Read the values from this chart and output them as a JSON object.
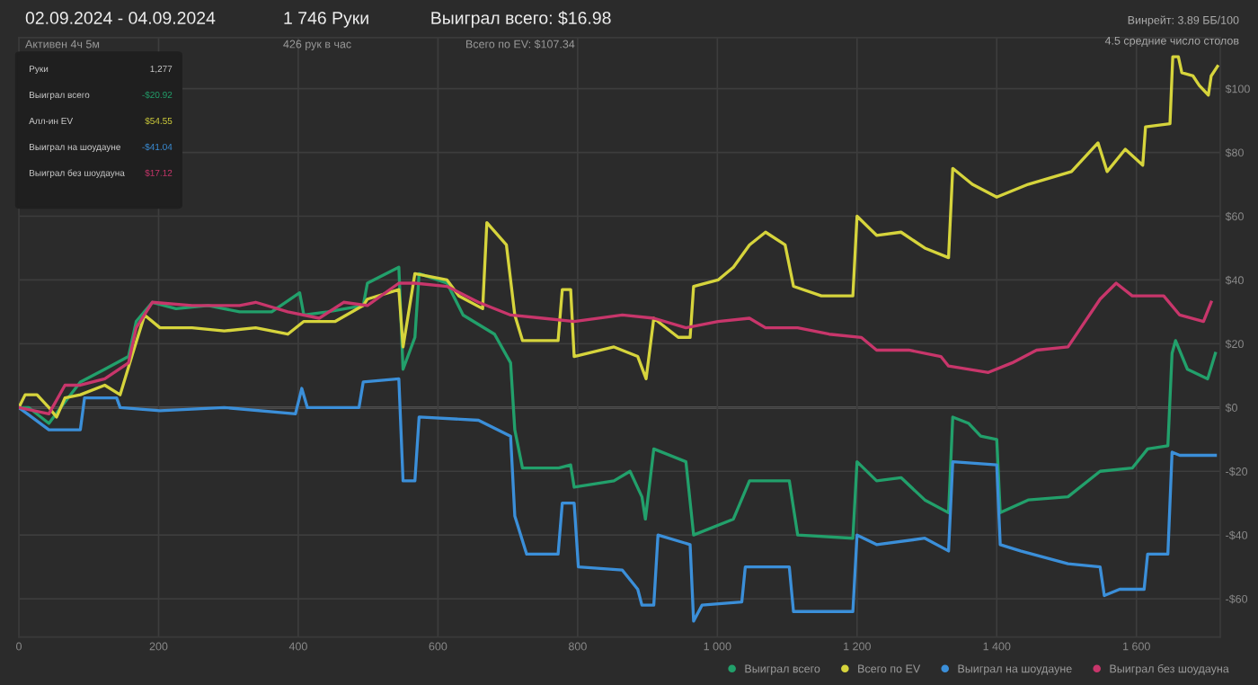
{
  "chart_data": {
    "type": "line",
    "title": "02.09.2024 - 04.09.2024",
    "subtitle": "Активен 4ч 5м",
    "annotations": [
      "1 746 Руки",
      "426 рук в час",
      "Выиграл всего: $16.98",
      "Всего по EV: $107.34",
      "Винрейт: 3.89 ББ/100",
      "4.5 средние число столов",
      "Руки",
      "1,277",
      "Выиграл всего",
      "-$20.92",
      "Алл-ин EV",
      "$54.55",
      "Выиграл на шоудауне",
      "-$41.04",
      "Выиграл без шоудауна",
      "$17.12"
    ],
    "series": [
      {
        "name": "Выиграл всего",
        "color": "#22a06b",
        "x": [
          0,
          14,
          43,
          60,
          88,
          123,
          157,
          168,
          191,
          225,
          271,
          316,
          362,
          402,
          408,
          442,
          493,
          499,
          544,
          550,
          567,
          573,
          613,
          636,
          681,
          704,
          710,
          721,
          773,
          790,
          795,
          852,
          875,
          892,
          897,
          909,
          955,
          966,
          1023,
          1046,
          1103,
          1115,
          1194,
          1200,
          1228,
          1263,
          1297,
          1331,
          1337,
          1360,
          1377,
          1400,
          1405,
          1445,
          1502,
          1548,
          1594,
          1616,
          1645,
          1651,
          1656,
          1673,
          1702,
          1713
        ],
        "values": [
          0,
          0,
          -5,
          0,
          8,
          12,
          16,
          27,
          33,
          31,
          32,
          30,
          30,
          36,
          29,
          30,
          32,
          39,
          44,
          12,
          22,
          42,
          39,
          29,
          23,
          14,
          -7,
          -19,
          -19,
          -18,
          -25,
          -23,
          -20,
          -28,
          -35,
          -13,
          -17,
          -40,
          -35,
          -23,
          -23,
          -40,
          -41,
          -17,
          -23,
          -22,
          -29,
          -33,
          -3,
          -5,
          -9,
          -10,
          -33,
          -29,
          -28,
          -20,
          -19,
          -13,
          -12,
          17,
          21,
          12,
          9,
          17
        ]
      },
      {
        "name": "Всего по EV",
        "color": "#d6d43c",
        "x": [
          0,
          9,
          26,
          43,
          54,
          66,
          88,
          123,
          145,
          163,
          180,
          202,
          248,
          294,
          339,
          385,
          408,
          453,
          493,
          499,
          544,
          550,
          567,
          613,
          630,
          664,
          670,
          698,
          710,
          721,
          772,
          778,
          790,
          795,
          852,
          886,
          898,
          909,
          944,
          961,
          966,
          1001,
          1023,
          1046,
          1069,
          1097,
          1109,
          1149,
          1194,
          1200,
          1228,
          1263,
          1297,
          1331,
          1337,
          1365,
          1400,
          1445,
          1507,
          1545,
          1558,
          1584,
          1609,
          1613,
          1648,
          1652,
          1660,
          1665,
          1681,
          1690,
          1703,
          1707,
          1716
        ],
        "values": [
          0,
          4,
          4,
          0,
          -3,
          3,
          4,
          7,
          4,
          17,
          29,
          25,
          25,
          24,
          25,
          23,
          27,
          27,
          32,
          34,
          37,
          19,
          42,
          40,
          35,
          31,
          58,
          51,
          29,
          21,
          21,
          37,
          37,
          16,
          19,
          16,
          9,
          28,
          22,
          22,
          38,
          40,
          44,
          51,
          55,
          51,
          38,
          35,
          35,
          60,
          54,
          55,
          50,
          47,
          75,
          70,
          66,
          70,
          74,
          83,
          74,
          81,
          76,
          88,
          89,
          110,
          110,
          105,
          104,
          101,
          98,
          104,
          107
        ]
      },
      {
        "name": "Выиграл на шоудауне",
        "color": "#3b8fd9",
        "x": [
          0,
          43,
          88,
          94,
          140,
          145,
          202,
          294,
          396,
          405,
          413,
          487,
          493,
          544,
          550,
          567,
          573,
          658,
          704,
          710,
          727,
          772,
          778,
          795,
          801,
          864,
          886,
          892,
          909,
          915,
          961,
          966,
          978,
          1035,
          1040,
          1103,
          1109,
          1194,
          1200,
          1228,
          1297,
          1331,
          1337,
          1400,
          1405,
          1434,
          1502,
          1548,
          1554,
          1576,
          1611,
          1616,
          1645,
          1651,
          1662,
          1713
        ],
        "values": [
          0,
          -7,
          -7,
          3,
          3,
          0,
          -1,
          0,
          -2,
          6,
          0,
          0,
          8,
          9,
          -23,
          -23,
          -3,
          -4,
          -9,
          -34,
          -46,
          -46,
          -30,
          -30,
          -50,
          -51,
          -57,
          -62,
          -62,
          -40,
          -43,
          -67,
          -62,
          -61,
          -50,
          -50,
          -64,
          -64,
          -40,
          -43,
          -41,
          -45,
          -17,
          -18,
          -43,
          -45,
          -49,
          -50,
          -59,
          -57,
          -57,
          -46,
          -46,
          -14,
          -15,
          -15
        ]
      },
      {
        "name": "Выиграл без шоудауна",
        "color": "#c8366b",
        "x": [
          0,
          43,
          66,
          88,
          123,
          157,
          168,
          191,
          248,
          316,
          339,
          385,
          430,
          465,
          499,
          544,
          567,
          613,
          658,
          704,
          750,
          795,
          864,
          909,
          955,
          1001,
          1046,
          1069,
          1115,
          1160,
          1206,
          1228,
          1274,
          1320,
          1331,
          1388,
          1422,
          1457,
          1502,
          1548,
          1571,
          1594,
          1639,
          1662,
          1696,
          1707
        ],
        "values": [
          0,
          -2,
          7,
          7,
          9,
          14,
          25,
          33,
          32,
          32,
          33,
          30,
          28,
          33,
          32,
          39,
          39,
          38,
          33,
          29,
          28,
          27,
          29,
          28,
          25,
          27,
          28,
          25,
          25,
          23,
          22,
          18,
          18,
          16,
          13,
          11,
          14,
          18,
          19,
          34,
          39,
          35,
          35,
          29,
          27,
          33
        ]
      }
    ],
    "xlim": [
      0,
      1720
    ],
    "xticks": [
      0,
      200,
      400,
      600,
      800,
      {
        "value": 1000,
        "label": "1 000"
      },
      {
        "value": 1200,
        "label": "1 200"
      },
      {
        "value": 1400,
        "label": "1 400"
      },
      {
        "value": 1600,
        "label": "1 600"
      }
    ],
    "ylim": [
      -72,
      116
    ],
    "yticks": [
      {
        "value": -60,
        "label": "-$60"
      },
      {
        "value": -40,
        "label": "-$40"
      },
      {
        "value": -20,
        "label": "-$20"
      },
      {
        "value": 0,
        "label": "$0"
      },
      {
        "value": 20,
        "label": "$20"
      },
      {
        "value": 40,
        "label": "$40"
      },
      {
        "value": 60,
        "label": "$60"
      },
      {
        "value": 80,
        "label": "$80"
      },
      {
        "value": 100,
        "label": "$100"
      }
    ],
    "grid": true,
    "legend": "bottom right",
    "marker": "none",
    "line_style": "solid"
  }
}
